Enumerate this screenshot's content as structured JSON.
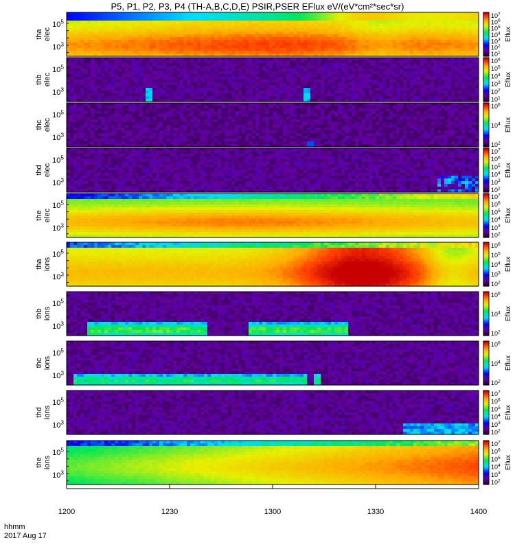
{
  "title": "P5, P1, P2, P3, P4 (TH-A,B,C,D,E) PSIR,PSER EFlux eV/(eV*cm²*sec*sr)",
  "colorbar_label": "Eflux",
  "footer": {
    "time_label": "hhmm",
    "date_label": "2017 Aug 17"
  },
  "chart_data": {
    "type": "heatmap",
    "title": "P5, P1, P2, P3, P4 (TH-A,B,C,D,E) PSIR,PSER EFlux eV/(eV*cm²*sec*sr)",
    "x_ticks": [
      "1200",
      "1230",
      "1300",
      "1330",
      "1400"
    ],
    "panels": [
      {
        "id": "tha-elec",
        "label": [
          "tha",
          "elec"
        ],
        "y_ticks": [
          "10^3",
          "10^5"
        ],
        "cbar_ticks": [
          "10^7",
          "10^6",
          "10^5",
          "10^4",
          "10^3",
          "10^2",
          "10^1"
        ],
        "pattern": "elec_tha"
      },
      {
        "id": "thb-elec",
        "label": [
          "thb",
          "elec"
        ],
        "y_ticks": [
          "10^3",
          "10^5"
        ],
        "cbar_ticks": [
          "10^6",
          "10^5",
          "10^4",
          "10^3",
          "10^2",
          "10^1"
        ],
        "pattern": "elec_quiet_b"
      },
      {
        "id": "thc-elec",
        "label": [
          "thc",
          "elec"
        ],
        "y_ticks": [
          "10^3",
          "10^5"
        ],
        "cbar_ticks": [
          "10^6",
          "10^4",
          "10^2"
        ],
        "pattern": "elec_quiet_c"
      },
      {
        "id": "thd-elec",
        "label": [
          "thd",
          "elec"
        ],
        "y_ticks": [
          "10^3",
          "10^5"
        ],
        "cbar_ticks": [
          "10^7",
          "10^6",
          "10^5",
          "10^4",
          "10^3",
          "10^2"
        ],
        "pattern": "elec_quiet_d"
      },
      {
        "id": "the-elec",
        "label": [
          "the",
          "elec"
        ],
        "y_ticks": [
          "10^3",
          "10^5"
        ],
        "cbar_ticks": [
          "10^7",
          "10^6",
          "10^5",
          "10^4",
          "10^3",
          "10^2"
        ],
        "pattern": "elec_the"
      },
      {
        "id": "tha-ions",
        "label": [
          "tha",
          "ions"
        ],
        "y_ticks": [
          "10^3",
          "10^5"
        ],
        "cbar_ticks": [
          "10^6",
          "10^5",
          "10^4",
          "10^3",
          "10^2"
        ],
        "pattern": "ions_tha"
      },
      {
        "id": "thb-ions",
        "label": [
          "thb",
          "ions"
        ],
        "y_ticks": [
          "10^3",
          "10^5"
        ],
        "cbar_ticks": [
          "10^6",
          "10^4",
          "10^2"
        ],
        "pattern": "ions_thb"
      },
      {
        "id": "thc-ions",
        "label": [
          "thc",
          "ions"
        ],
        "y_ticks": [
          "10^3",
          "10^5"
        ],
        "cbar_ticks": [
          "10^6",
          "10^4",
          "10^2"
        ],
        "pattern": "ions_thc"
      },
      {
        "id": "thd-ions",
        "label": [
          "thd",
          "ions"
        ],
        "y_ticks": [
          "10^3",
          "10^5"
        ],
        "cbar_ticks": [
          "10^7",
          "10^6",
          "10^5",
          "10^4",
          "10^3",
          "10^2"
        ],
        "pattern": "ions_thd"
      },
      {
        "id": "the-ions",
        "label": [
          "the",
          "ions"
        ],
        "y_ticks": [
          "10^3",
          "10^5"
        ],
        "cbar_ticks": [
          "10^7",
          "10^6",
          "10^5",
          "10^4",
          "10^3",
          "10^2"
        ],
        "pattern": "ions_the"
      }
    ]
  }
}
